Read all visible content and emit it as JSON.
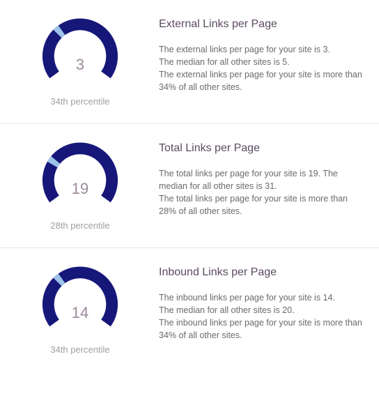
{
  "gauge_style": {
    "ring_color": "#17177a",
    "indicator_color": "#9ec3ea",
    "value_text_color": "#9a8a9a",
    "caption_text_color": "#a0a0a0",
    "title_text_color": "#5a4a5f",
    "desc_text_color": "#6a6a6a",
    "background_color": "#ffffff",
    "divider_color": "#e8e8e8",
    "outer_radius": 58,
    "inner_radius": 40,
    "start_angle_deg": 216,
    "end_angle_deg": -36,
    "indicator_span_deg": 10,
    "title_fontsize": 16,
    "desc_fontsize": 12.5,
    "value_fontsize": 22,
    "caption_fontsize": 13
  },
  "metrics": [
    {
      "value": "3",
      "percentile": 34,
      "caption": "34th percentile",
      "title": "External Links per Page",
      "description": "The external links per page for your site is 3.\nThe median for all other sites is 5.\nThe external links per page for your site is more than 34% of all other sites."
    },
    {
      "value": "19",
      "percentile": 28,
      "caption": "28th percentile",
      "title": "Total Links per Page",
      "description": "The total links per page for your site is 19. The median for all other sites is 31.\nThe total links per page for your site is more than 28% of all other sites."
    },
    {
      "value": "14",
      "percentile": 34,
      "caption": "34th percentile",
      "title": "Inbound Links per Page",
      "description": "The inbound links per page for your site is 14.\nThe median for all other sites is 20.\nThe inbound links per page for your site is more than 34% of all other sites."
    }
  ]
}
